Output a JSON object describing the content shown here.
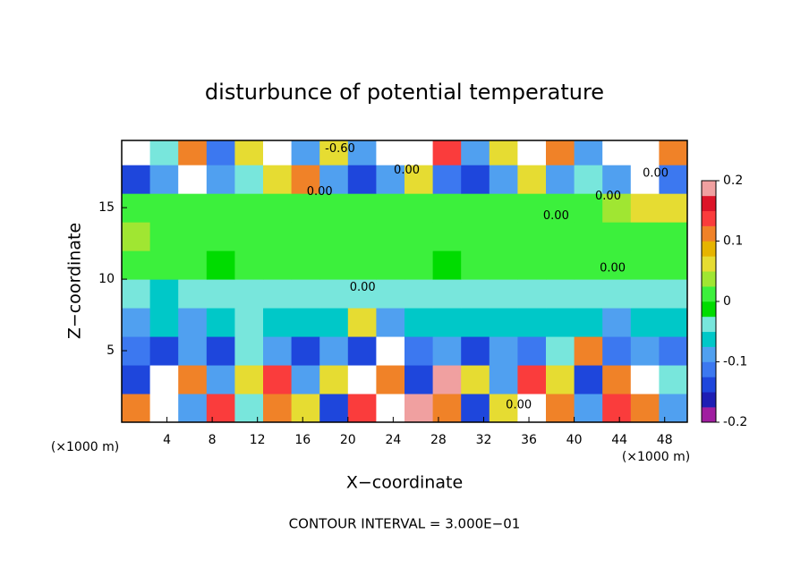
{
  "chart_data": {
    "type": "heatmap",
    "title": "disturbunce of potential temperature",
    "x_label": "X−coordinate",
    "y_label": "Z−coordinate",
    "x_unit": "(×1000 m)",
    "y_unit": "(×1000 m)",
    "footer": "CONTOUR INTERVAL = 3.000E−01",
    "xlim": [
      0,
      50
    ],
    "ylim": [
      0,
      19.7
    ],
    "xticks": [
      4,
      8,
      12,
      16,
      20,
      24,
      28,
      32,
      36,
      40,
      44,
      48
    ],
    "yticks": [
      5,
      10,
      15
    ],
    "x": [
      1.25,
      3.75,
      6.25,
      8.75,
      11.25,
      13.75,
      16.25,
      18.75,
      21.25,
      23.75,
      26.25,
      28.75,
      31.25,
      33.75,
      36.25,
      38.75,
      41.25,
      43.75,
      46.25,
      48.75
    ],
    "z": [
      1,
      3,
      5,
      7,
      9,
      11,
      13,
      15,
      17,
      19
    ],
    "values": [
      [
        0.1,
        0.25,
        -0.1,
        0.15,
        -0.05,
        0.1,
        0.05,
        -0.15,
        0.15,
        -0.25,
        0.2,
        0.1,
        -0.15,
        0.05,
        0.25,
        0.1,
        -0.1,
        0.15,
        0.1,
        -0.1
      ],
      [
        -0.15,
        0.25,
        0.1,
        -0.1,
        0.05,
        0.15,
        -0.1,
        0.05,
        0.25,
        0.1,
        -0.15,
        0.2,
        0.05,
        -0.1,
        0.15,
        0.05,
        -0.15,
        0.1,
        0.25,
        -0.05
      ],
      [
        -0.12,
        -0.15,
        -0.1,
        -0.15,
        -0.05,
        -0.1,
        -0.15,
        -0.1,
        -0.15,
        0.25,
        -0.12,
        -0.1,
        -0.15,
        -0.1,
        -0.12,
        -0.05,
        0.1,
        -0.12,
        -0.1,
        -0.12
      ],
      [
        -0.08,
        -0.07,
        -0.08,
        -0.07,
        -0.05,
        -0.06,
        -0.06,
        -0.07,
        0.05,
        -0.08,
        -0.07,
        -0.06,
        -0.07,
        -0.06,
        -0.07,
        -0.06,
        -0.07,
        -0.08,
        -0.07,
        -0.06
      ],
      [
        -0.05,
        -0.06,
        -0.05,
        -0.04,
        -0.05,
        -0.05,
        -0.04,
        -0.05,
        -0.04,
        -0.03,
        -0.04,
        -0.04,
        -0.05,
        -0.04,
        -0.04,
        -0.05,
        -0.04,
        -0.05,
        -0.04,
        -0.05
      ],
      [
        0,
        0.01,
        0,
        -0.01,
        0,
        0.01,
        0,
        0,
        0.01,
        0,
        0,
        -0.01,
        0,
        0.01,
        0,
        0,
        0.01,
        0,
        0,
        0
      ],
      [
        0.03,
        0.02,
        0.01,
        0.01,
        0,
        0,
        0.01,
        0,
        0,
        0,
        0,
        0,
        0,
        0,
        0,
        0,
        0,
        0,
        0,
        0
      ],
      [
        0,
        0,
        0,
        0,
        0,
        0,
        0,
        0,
        0,
        0,
        0,
        0,
        0,
        0,
        0,
        0,
        0.02,
        0.03,
        0.05,
        0.05
      ],
      [
        -0.15,
        -0.1,
        0.25,
        -0.1,
        -0.05,
        0.05,
        0.1,
        -0.1,
        -0.15,
        -0.1,
        0.05,
        -0.12,
        -0.15,
        -0.1,
        0.05,
        -0.1,
        -0.05,
        -0.1,
        0.25,
        -0.12
      ],
      [
        0.25,
        -0.05,
        0.1,
        -0.12,
        0.05,
        0.25,
        -0.1,
        0.05,
        -0.1,
        0.25,
        0.25,
        0.15,
        -0.1,
        0.05,
        0.25,
        0.1,
        -0.1,
        0.25,
        0.25,
        0.1
      ]
    ],
    "zlim": [
      -0.2,
      0.2
    ],
    "zticks": [
      -0.2,
      -0.1,
      0,
      0.1,
      0.2
    ],
    "colors": [
      "#a01ea0",
      "#1e1eb4",
      "#1e46dc",
      "#3c78f0",
      "#50a0f0",
      "#00c8c8",
      "#78e6dc",
      "#00dc00",
      "#3cf03c",
      "#a0e632",
      "#e6dc32",
      "#e6b400",
      "#f08228",
      "#fa3c3c",
      "#dc1428",
      "#f0a0a0"
    ],
    "contour_labels": [
      {
        "x": 19.3,
        "y": 19.1,
        "label": "-0.60"
      },
      {
        "x": 25.2,
        "y": 17.6,
        "label": "0.00"
      },
      {
        "x": 17.5,
        "y": 16.1,
        "label": "0.00"
      },
      {
        "x": 47.2,
        "y": 17.4,
        "label": "0.00"
      },
      {
        "x": 43.0,
        "y": 15.8,
        "label": "0.00"
      },
      {
        "x": 38.4,
        "y": 14.4,
        "label": "0.00"
      },
      {
        "x": 43.4,
        "y": 10.75,
        "label": "0.00"
      },
      {
        "x": 21.3,
        "y": 9.4,
        "label": "0.00"
      },
      {
        "x": 35.1,
        "y": 1.2,
        "label": "0.00"
      }
    ]
  }
}
